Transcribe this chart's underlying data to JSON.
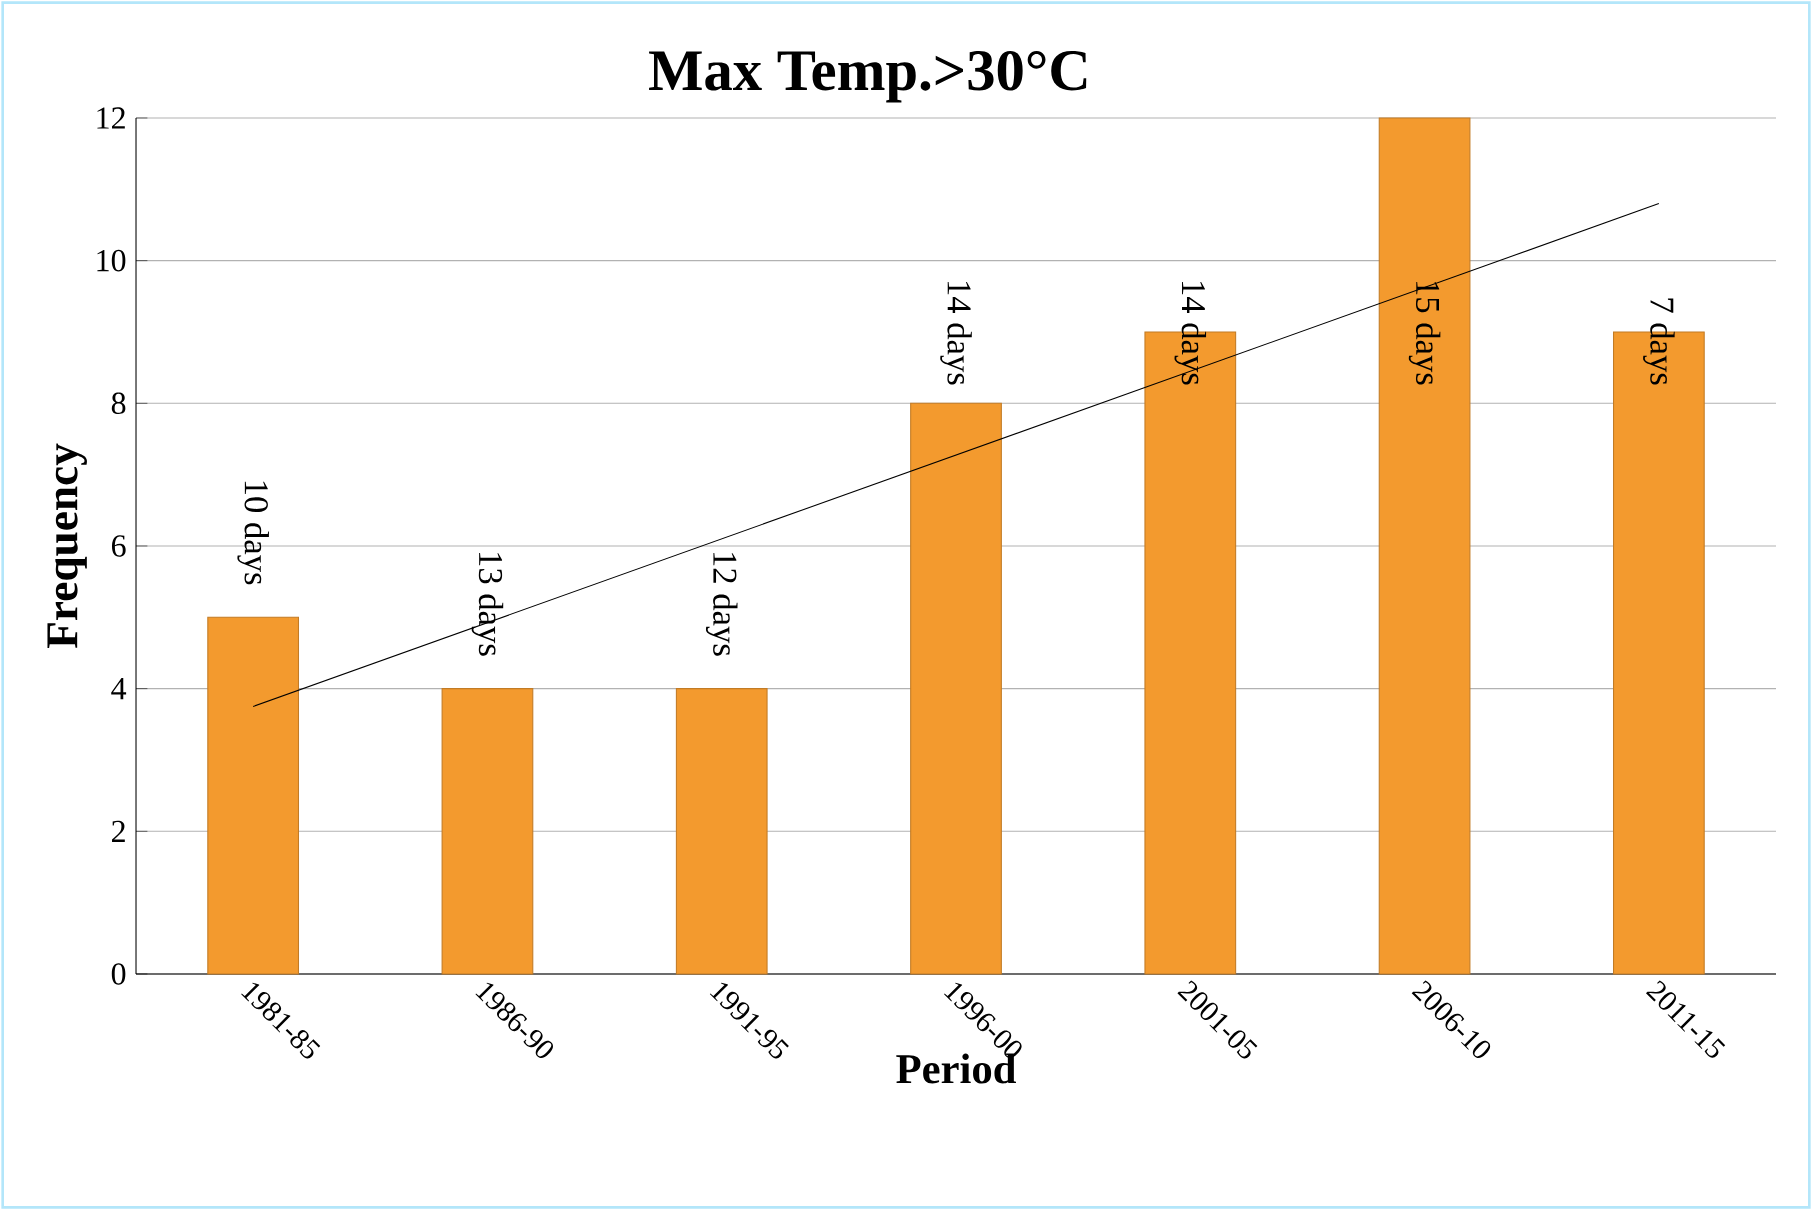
{
  "chart_data": {
    "type": "bar",
    "title": "Max Temp.>30°C",
    "xlabel": "Period",
    "ylabel": "Frequency",
    "categories": [
      "1981-85",
      "1986-90",
      "1991-95",
      "1996-00",
      "2001-05",
      "2006-10",
      "2011-15"
    ],
    "series": [
      {
        "color": "#f39a2e",
        "values": [
          5,
          4,
          4,
          8,
          9,
          12,
          9
        ]
      },
      {
        "type": "line",
        "color": "#000000",
        "x": [
          "1981-85",
          "2011-15"
        ],
        "values": [
          3.75,
          10.8
        ]
      }
    ],
    "ylim": [
      0,
      12
    ],
    "yticks": [
      0,
      2,
      4,
      6,
      8,
      10,
      12
    ],
    "grid": "y",
    "annotations": [
      "10 days",
      "13 days",
      "12 days",
      "14 days",
      "14 days",
      "15 days",
      "7 days"
    ]
  }
}
